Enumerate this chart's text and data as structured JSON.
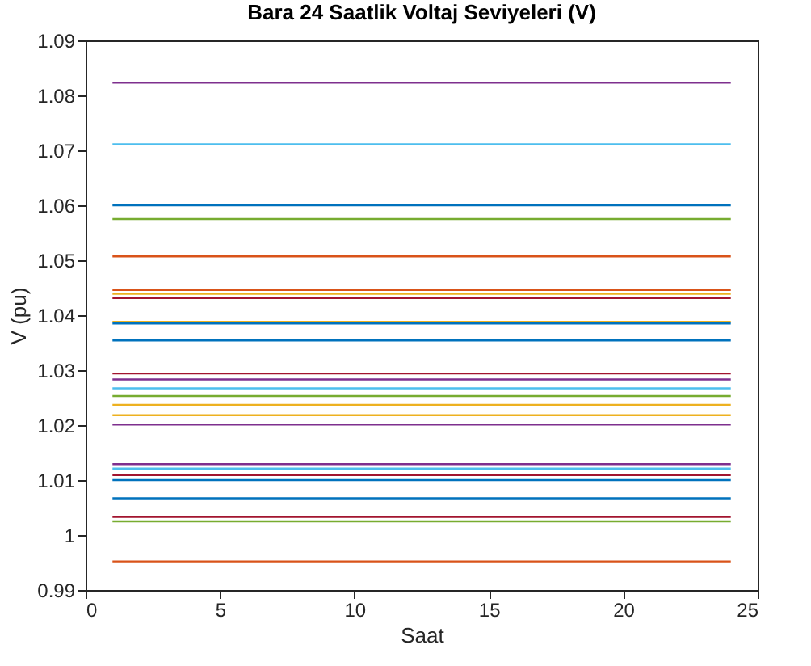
{
  "chart_data": {
    "type": "line",
    "title": "Bara 24 Saatlik Voltaj Seviyeleri (V)",
    "xlabel": "Saat",
    "ylabel": "V (pu)",
    "x": [
      1,
      24
    ],
    "series": [
      {
        "color": "#7e2f8e",
        "values": [
          1.0823,
          1.0823
        ]
      },
      {
        "color": "#4dbeee",
        "values": [
          1.0711,
          1.0711
        ]
      },
      {
        "color": "#0072bd",
        "values": [
          1.06,
          1.06
        ]
      },
      {
        "color": "#77ac30",
        "values": [
          1.0575,
          1.0575
        ]
      },
      {
        "color": "#d95319",
        "values": [
          1.0507,
          1.0507
        ]
      },
      {
        "color": "#d95319",
        "values": [
          1.0446,
          1.0446
        ]
      },
      {
        "color": "#edb120",
        "values": [
          1.0439,
          1.0439
        ]
      },
      {
        "color": "#a2142f",
        "values": [
          1.0431,
          1.0431
        ]
      },
      {
        "color": "#edb120",
        "values": [
          1.0388,
          1.0388
        ]
      },
      {
        "color": "#0072bd",
        "values": [
          1.0385,
          1.0385
        ]
      },
      {
        "color": "#0072bd",
        "values": [
          1.0354,
          1.0354
        ]
      },
      {
        "color": "#a2142f",
        "values": [
          1.0294,
          1.0294
        ]
      },
      {
        "color": "#7e2f8e",
        "values": [
          1.0283,
          1.0283
        ]
      },
      {
        "color": "#4dbeee",
        "values": [
          1.0267,
          1.0267
        ]
      },
      {
        "color": "#77ac30",
        "values": [
          1.0253,
          1.0253
        ]
      },
      {
        "color": "#edb120",
        "values": [
          1.0237,
          1.0237
        ]
      },
      {
        "color": "#edb120",
        "values": [
          1.0218,
          1.0218
        ]
      },
      {
        "color": "#7e2f8e",
        "values": [
          1.0201,
          1.0201
        ]
      },
      {
        "color": "#7e2f8e",
        "values": [
          1.0129,
          1.0129
        ]
      },
      {
        "color": "#4dbeee",
        "values": [
          1.0121,
          1.0121
        ]
      },
      {
        "color": "#a2142f",
        "values": [
          1.0109,
          1.0109
        ]
      },
      {
        "color": "#0072bd",
        "values": [
          1.01,
          1.01
        ]
      },
      {
        "color": "#0072bd",
        "values": [
          1.0067,
          1.0067
        ]
      },
      {
        "color": "#a2142f",
        "values": [
          1.0033,
          1.0033
        ]
      },
      {
        "color": "#77ac30",
        "values": [
          1.0025,
          1.0025
        ]
      },
      {
        "color": "#d95319",
        "values": [
          0.9952,
          0.9952
        ]
      }
    ],
    "xlim": [
      0,
      25
    ],
    "xticks": [
      0,
      5,
      10,
      15,
      20,
      25
    ],
    "ylim": [
      0.99,
      1.09
    ],
    "yticks": [
      0.99,
      1,
      1.01,
      1.02,
      1.03,
      1.04,
      1.05,
      1.06,
      1.07,
      1.08,
      1.09
    ],
    "grid": false,
    "line_style": "solid",
    "marker": "none"
  }
}
